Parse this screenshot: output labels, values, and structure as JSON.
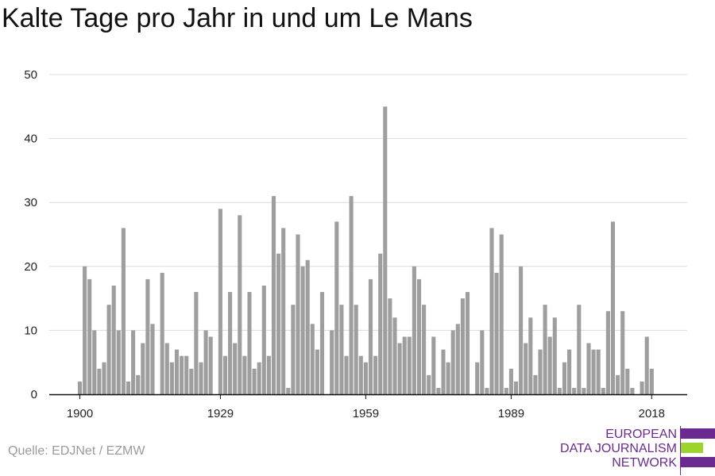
{
  "title": "Kalte Tage pro Jahr in und um Le Mans",
  "source": "Quelle: EDJNet / EZMW",
  "logo": {
    "line1": "EUROPEAN",
    "line2": "DATA JOURNALISM",
    "line3": "NETWORK",
    "colors": {
      "text": "#6a2a8f",
      "bar_purple": "#6a2a8f",
      "bar_green": "#9bd42d"
    }
  },
  "chart_data": {
    "type": "bar",
    "title": "Kalte Tage pro Jahr in und um Le Mans",
    "xlabel": "",
    "ylabel": "",
    "ylim": [
      0,
      50
    ],
    "yticks": [
      0,
      10,
      20,
      30,
      40,
      50
    ],
    "xticks": [
      1900,
      1929,
      1959,
      1989,
      2018
    ],
    "grid": true,
    "bar_color": "#9e9e9e",
    "x": [
      1900,
      1901,
      1902,
      1903,
      1904,
      1905,
      1906,
      1907,
      1908,
      1909,
      1910,
      1911,
      1912,
      1913,
      1914,
      1915,
      1916,
      1917,
      1918,
      1919,
      1920,
      1921,
      1922,
      1923,
      1924,
      1925,
      1926,
      1927,
      1928,
      1929,
      1930,
      1931,
      1932,
      1933,
      1934,
      1935,
      1936,
      1937,
      1938,
      1939,
      1940,
      1941,
      1942,
      1943,
      1944,
      1945,
      1946,
      1947,
      1948,
      1949,
      1950,
      1951,
      1952,
      1953,
      1954,
      1955,
      1956,
      1957,
      1958,
      1959,
      1960,
      1961,
      1962,
      1963,
      1964,
      1965,
      1966,
      1967,
      1968,
      1969,
      1970,
      1971,
      1972,
      1973,
      1974,
      1975,
      1976,
      1977,
      1978,
      1979,
      1980,
      1981,
      1982,
      1983,
      1984,
      1985,
      1986,
      1987,
      1988,
      1989,
      1990,
      1991,
      1992,
      1993,
      1994,
      1995,
      1996,
      1997,
      1998,
      1999,
      2000,
      2001,
      2002,
      2003,
      2004,
      2005,
      2006,
      2007,
      2008,
      2009,
      2010,
      2011,
      2012,
      2013,
      2014,
      2015,
      2016,
      2017,
      2018,
      2019
    ],
    "values": [
      2,
      20,
      18,
      10,
      4,
      5,
      14,
      17,
      10,
      26,
      2,
      10,
      3,
      8,
      18,
      11,
      0,
      19,
      8,
      5,
      7,
      6,
      6,
      4,
      16,
      5,
      10,
      9,
      0,
      29,
      6,
      16,
      8,
      28,
      6,
      16,
      4,
      5,
      17,
      6,
      31,
      22,
      26,
      1,
      14,
      25,
      20,
      21,
      11,
      7,
      16,
      0,
      10,
      27,
      14,
      6,
      31,
      14,
      6,
      5,
      18,
      6,
      22,
      45,
      15,
      12,
      8,
      9,
      9,
      20,
      18,
      14,
      3,
      9,
      1,
      7,
      5,
      10,
      11,
      15,
      16,
      0,
      5,
      10,
      1,
      26,
      19,
      25,
      1,
      4,
      2,
      20,
      8,
      12,
      3,
      7,
      14,
      9,
      12,
      1,
      5,
      7,
      1,
      14,
      1,
      8,
      7,
      7,
      1,
      13,
      27,
      3,
      13,
      4,
      1,
      0,
      2,
      9,
      4,
      0
    ]
  }
}
